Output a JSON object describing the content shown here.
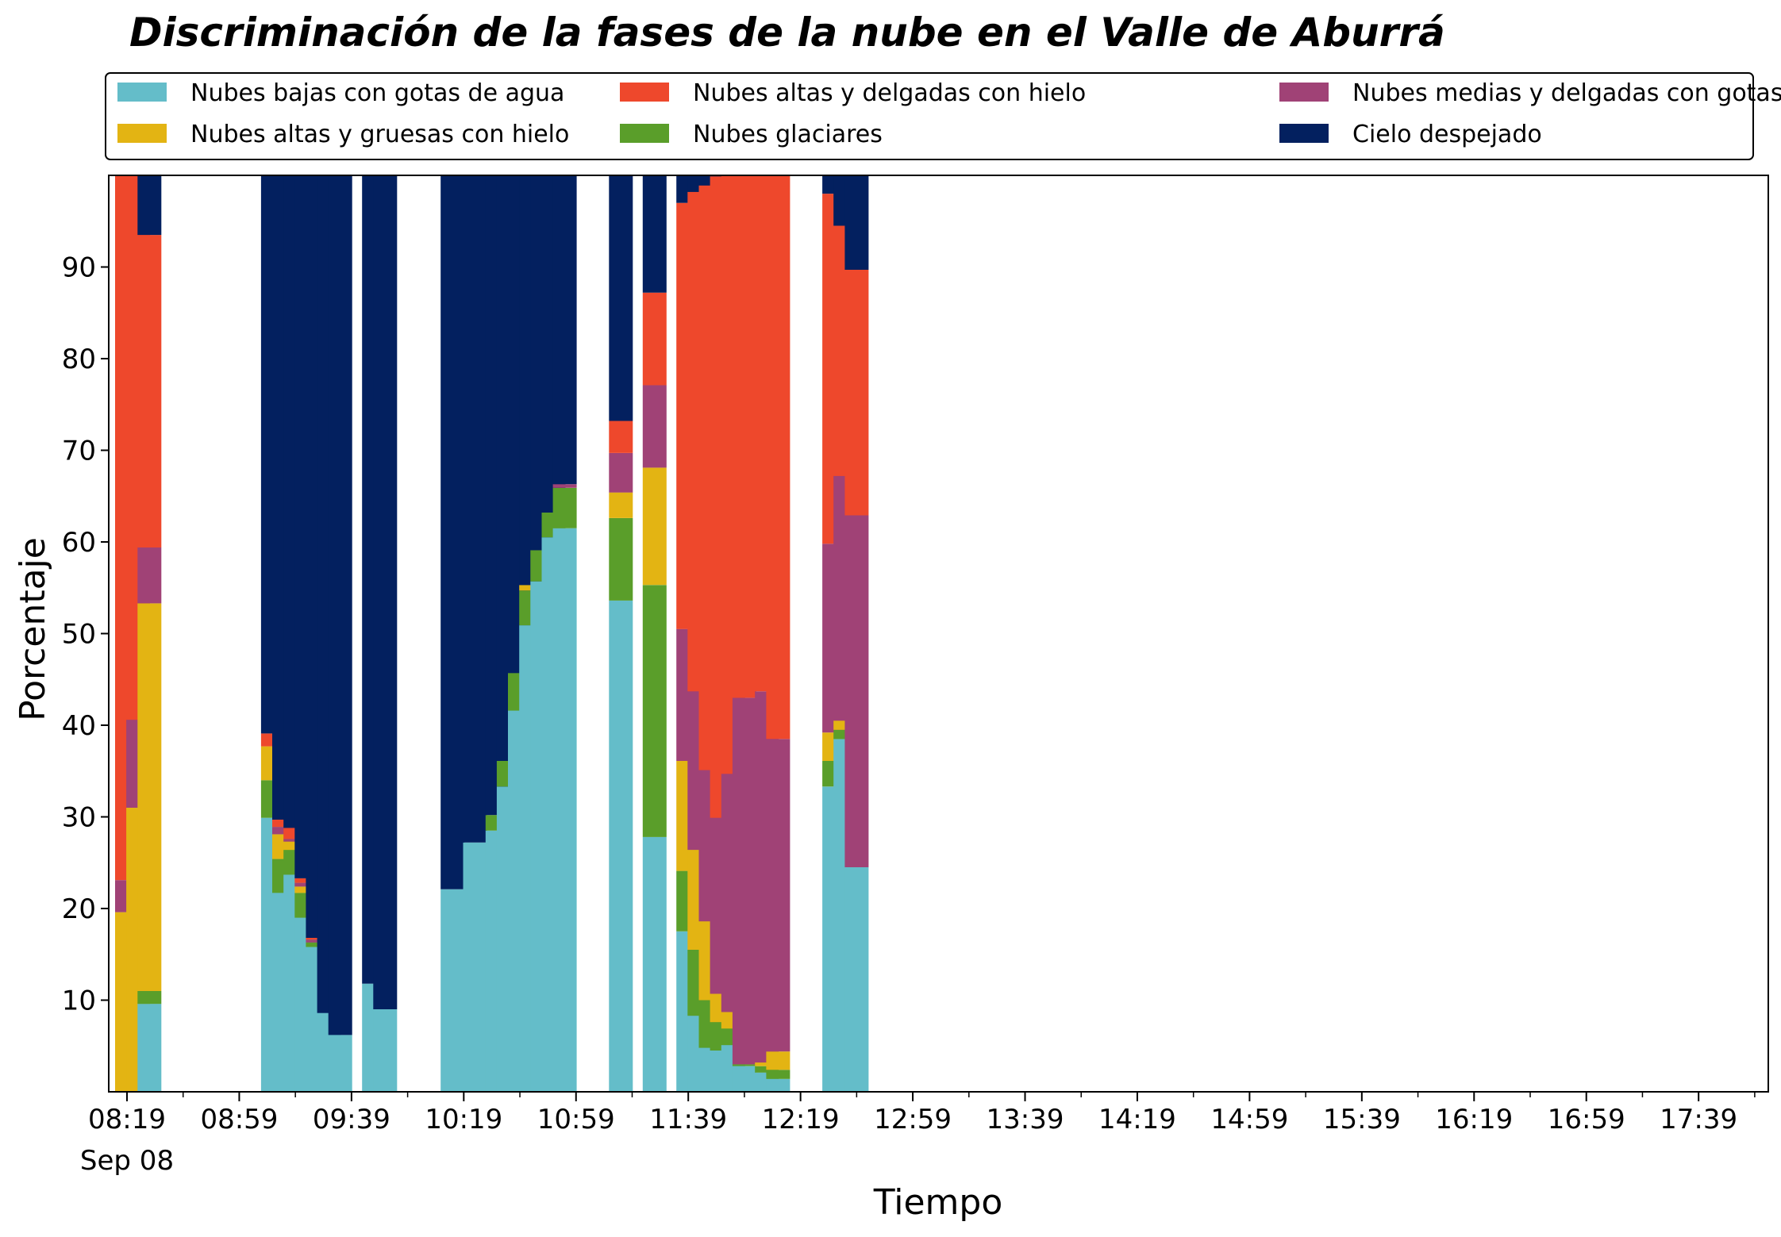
{
  "chart_data": {
    "type": "bar",
    "stacked": true,
    "title": "Discriminación de la fases de la nube en el Valle de Aburrá",
    "xlabel": "Tiempo",
    "ylabel": "Porcentaje",
    "ylim": [
      0,
      100
    ],
    "yticks": [
      10,
      20,
      30,
      40,
      50,
      60,
      70,
      80,
      90
    ],
    "xticks": [
      {
        "time": "08:19",
        "label": "08:19",
        "sublabel": "Sep 08"
      },
      {
        "time": "08:59",
        "label": "08:59"
      },
      {
        "time": "09:39",
        "label": "09:39"
      },
      {
        "time": "10:19",
        "label": "10:19"
      },
      {
        "time": "10:59",
        "label": "10:59"
      },
      {
        "time": "11:39",
        "label": "11:39"
      },
      {
        "time": "12:19",
        "label": "12:19"
      },
      {
        "time": "12:59",
        "label": "12:59"
      },
      {
        "time": "13:39",
        "label": "13:39"
      },
      {
        "time": "14:19",
        "label": "14:19"
      },
      {
        "time": "14:59",
        "label": "14:59"
      },
      {
        "time": "15:39",
        "label": "15:39"
      },
      {
        "time": "16:19",
        "label": "16:19"
      },
      {
        "time": "16:59",
        "label": "16:59"
      },
      {
        "time": "17:39",
        "label": "17:39"
      }
    ],
    "grid": false,
    "legend_position": "top",
    "series": [
      {
        "name": "Nubes bajas con gotas de agua",
        "color": "#64BDC9"
      },
      {
        "name": "Nubes glaciares",
        "color": "#5A9E2A"
      },
      {
        "name": "Nubes altas y gruesas con hielo",
        "color": "#E3B413"
      },
      {
        "name": "Nubes medias y delgadas con gotas de agua",
        "color": "#A04276"
      },
      {
        "name": "Nubes altas y delgadas con hielo",
        "color": "#EE482C"
      },
      {
        "name": "Cielo despejado",
        "color": "#03205F"
      }
    ],
    "legend_order": [
      0,
      2,
      4,
      1,
      3,
      5
    ],
    "bars": [
      {
        "time": "08:19",
        "values": [
          0,
          0,
          19.6,
          3.5,
          76.9,
          0
        ]
      },
      {
        "time": "08:23",
        "values": [
          0,
          0,
          31.0,
          9.6,
          59.4,
          0
        ]
      },
      {
        "time": "08:27",
        "values": [
          9.6,
          1.4,
          42.3,
          6.1,
          34.1,
          6.5
        ]
      },
      {
        "time": "09:11",
        "values": [
          29.9,
          4.1,
          3.7,
          0,
          1.4,
          60.9
        ]
      },
      {
        "time": "09:15",
        "values": [
          21.7,
          3.7,
          2.7,
          0.8,
          0.8,
          70.3
        ]
      },
      {
        "time": "09:19",
        "values": [
          23.7,
          2.7,
          0.9,
          0.3,
          1.2,
          71.2
        ]
      },
      {
        "time": "09:23",
        "values": [
          19.0,
          2.7,
          0.7,
          0.4,
          0.5,
          76.7
        ]
      },
      {
        "time": "09:27",
        "values": [
          15.8,
          0.5,
          0,
          0.3,
          0.2,
          83.2
        ]
      },
      {
        "time": "09:31",
        "values": [
          8.6,
          0,
          0,
          0,
          0,
          91.4
        ]
      },
      {
        "time": "09:35",
        "values": [
          6.2,
          0,
          0,
          0,
          0,
          93.8
        ]
      },
      {
        "time": "09:47",
        "values": [
          11.8,
          0,
          0,
          0,
          0,
          88.2
        ]
      },
      {
        "time": "09:51",
        "values": [
          9.0,
          0,
          0,
          0,
          0,
          91.0
        ]
      },
      {
        "time": "10:15",
        "values": [
          22.1,
          0,
          0,
          0,
          0,
          77.9
        ]
      },
      {
        "time": "10:23",
        "values": [
          27.2,
          0,
          0,
          0,
          0,
          72.8
        ]
      },
      {
        "time": "10:31",
        "values": [
          28.5,
          1.7,
          0,
          0,
          0,
          69.8
        ]
      },
      {
        "time": "10:35",
        "values": [
          33.3,
          2.8,
          0,
          0,
          0,
          63.9
        ]
      },
      {
        "time": "10:39",
        "values": [
          41.6,
          4.1,
          0,
          0,
          0,
          54.3
        ]
      },
      {
        "time": "10:43",
        "values": [
          50.9,
          3.8,
          0.6,
          0,
          0,
          44.7
        ]
      },
      {
        "time": "10:47",
        "values": [
          55.7,
          3.4,
          0,
          0,
          0,
          40.9
        ]
      },
      {
        "time": "10:51",
        "values": [
          60.5,
          2.7,
          0,
          0,
          0,
          36.8
        ]
      },
      {
        "time": "10:55",
        "values": [
          61.5,
          4.4,
          0,
          0.4,
          0,
          33.7
        ]
      },
      {
        "time": "11:15",
        "values": [
          53.6,
          9.0,
          2.8,
          4.3,
          3.5,
          26.8
        ]
      },
      {
        "time": "11:27",
        "values": [
          27.8,
          27.5,
          12.8,
          9.0,
          10.1,
          12.8
        ]
      },
      {
        "time": "11:39",
        "values": [
          17.5,
          6.6,
          12.0,
          14.4,
          46.5,
          3.0
        ]
      },
      {
        "time": "11:43",
        "values": [
          8.3,
          7.2,
          10.9,
          17.3,
          54.5,
          1.8
        ]
      },
      {
        "time": "11:47",
        "values": [
          4.8,
          5.2,
          8.6,
          16.5,
          63.8,
          1.1
        ]
      },
      {
        "time": "11:51",
        "values": [
          4.5,
          3.1,
          3.1,
          19.2,
          70.0,
          0.1
        ]
      },
      {
        "time": "11:55",
        "values": [
          5.1,
          1.8,
          1.8,
          26.0,
          65.3,
          0
        ]
      },
      {
        "time": "11:59",
        "values": [
          2.8,
          0.2,
          0,
          40.0,
          57.0,
          0
        ]
      },
      {
        "time": "12:07",
        "values": [
          2.1,
          0.7,
          0.4,
          40.5,
          56.3,
          0
        ]
      },
      {
        "time": "12:11",
        "values": [
          1.4,
          1.0,
          2.0,
          34.1,
          61.5,
          0
        ]
      },
      {
        "time": "12:31",
        "values": [
          33.3,
          2.8,
          3.1,
          20.6,
          38.2,
          2.0
        ]
      },
      {
        "time": "12:35",
        "values": [
          38.5,
          1.0,
          1.0,
          26.7,
          27.3,
          5.5
        ]
      },
      {
        "time": "12:39",
        "values": [
          24.5,
          0,
          0,
          38.4,
          26.8,
          10.3
        ]
      }
    ]
  }
}
